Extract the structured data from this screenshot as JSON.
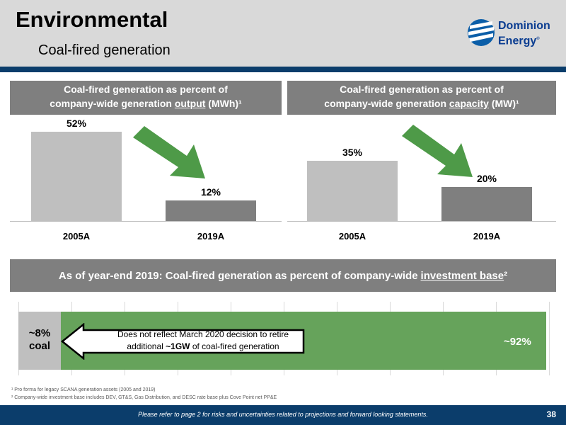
{
  "header": {
    "title": "Environmental",
    "subtitle": "Coal-fired generation",
    "logo_line1": "Dominion",
    "logo_line2": "Energy"
  },
  "output_panel": {
    "head_line1": "Coal-fired generation as percent of",
    "head_line2_pre": "company-wide generation ",
    "head_line2_emph": "output",
    "head_line2_post": " (MWh)¹"
  },
  "capacity_panel": {
    "head_line1": "Coal-fired generation as percent of",
    "head_line2_pre": "company-wide generation ",
    "head_line2_emph": "capacity",
    "head_line2_post": " (MW)¹"
  },
  "chart_data": [
    {
      "type": "bar",
      "categories": [
        "2005A",
        "2019A"
      ],
      "values": [
        52,
        12
      ],
      "value_labels": [
        "52%",
        "12%"
      ],
      "ylim": [
        0,
        52
      ]
    },
    {
      "type": "bar",
      "categories": [
        "2005A",
        "2019A"
      ],
      "values": [
        35,
        20
      ],
      "value_labels": [
        "35%",
        "20%"
      ],
      "ylim": [
        0,
        52
      ]
    }
  ],
  "investment": {
    "head_pre": "As of year-end 2019: Coal-fired generation as percent of company-wide",
    "head_emph": "investment base",
    "head_post": "²",
    "coal_pct": 8,
    "coal_label_line1": "~8%",
    "coal_label_line2": "coal",
    "other_label": "~92%",
    "callout_pre": "Does not reflect March 2020 decision to retire additional ",
    "callout_emph": "~1GW",
    "callout_post": " of coal-fired generation"
  },
  "footnotes": {
    "note1": "¹ Pro forma for legacy SCANA generation assets (2005 and 2019)",
    "note2": "² Company-wide investment base includes DEV, GT&S, Gas Distribution, and DESC rate base plus Cove Point net PP&E"
  },
  "footer": {
    "disclaimer": "Please refer to page 2 for risks and uncertainties related to projections and forward looking statements.",
    "page_number": "38"
  },
  "colors": {
    "bar_2005": "#bfbfbf",
    "bar_2019": "#7f7f7f",
    "arrow": "#4e9a48",
    "brand": "#0b3d6b"
  }
}
